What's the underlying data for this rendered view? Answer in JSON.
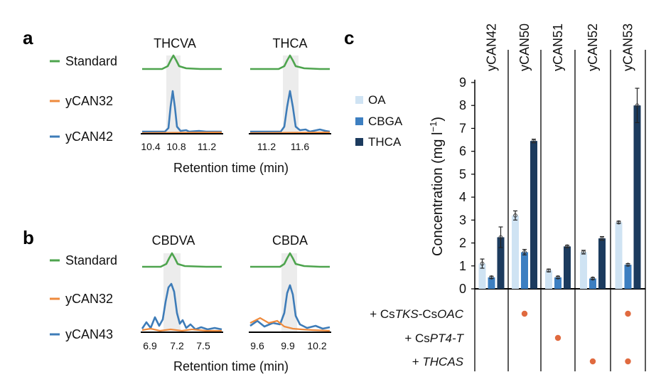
{
  "colors": {
    "standard": "#4ea44e",
    "control": "#ee8a3c",
    "strain": "#3e7cb8",
    "OA": "#cfe3f3",
    "CBGA": "#3d7fc1",
    "THCA": "#1c3b5e",
    "dot": "#e06a3f",
    "highlight": "#ececec"
  },
  "panels": {
    "a": "a",
    "b": "b",
    "c": "c"
  },
  "panel_a": {
    "legend": [
      "Standard",
      "yCAN32",
      "yCAN42"
    ],
    "xlabel": "Retention time (min)",
    "plots": [
      {
        "title": "THCVA",
        "ticks": [
          "10.4",
          "10.8",
          "11.2"
        ]
      },
      {
        "title": "THCA",
        "ticks": [
          "11.2",
          "11.6"
        ]
      }
    ]
  },
  "panel_b": {
    "legend": [
      "Standard",
      "yCAN32",
      "yCAN43"
    ],
    "xlabel": "Retention time (min)",
    "plots": [
      {
        "title": "CBDVA",
        "ticks": [
          "6.9",
          "7.2",
          "7.5"
        ]
      },
      {
        "title": "CBDA",
        "ticks": [
          "9.6",
          "9.9",
          "10.2"
        ]
      }
    ]
  },
  "chart_data": {
    "type": "bar",
    "categories": [
      "yCAN42",
      "yCAN50",
      "yCAN51",
      "yCAN52",
      "yCAN53"
    ],
    "series": [
      {
        "name": "OA",
        "values": [
          1.1,
          3.2,
          0.8,
          1.6,
          2.9
        ]
      },
      {
        "name": "CBGA",
        "values": [
          0.5,
          1.6,
          0.5,
          0.45,
          1.05
        ]
      },
      {
        "name": "THCA",
        "values": [
          2.25,
          6.45,
          1.85,
          2.2,
          8.0
        ]
      }
    ],
    "errors": [
      [
        0.2,
        0.2,
        0.06,
        0.08,
        0.05
      ],
      [
        0.05,
        0.12,
        0.05,
        0.04,
        0.05
      ],
      [
        0.45,
        0.08,
        0.05,
        0.08,
        0.75
      ]
    ],
    "ylabel_main": "Concentration (mg l",
    "ylabel_sup": "−1",
    "ylabel_end": ")",
    "yticks": [
      "0",
      "1",
      "2",
      "3",
      "4",
      "5",
      "6",
      "7",
      "8",
      "9"
    ],
    "ylim": [
      0,
      9
    ],
    "legend_placement": "top-left",
    "conditions": [
      {
        "parts": [
          "+ Cs",
          "TKS",
          "-Cs",
          "OAC"
        ],
        "present": [
          false,
          true,
          false,
          false,
          true
        ]
      },
      {
        "parts": [
          "+ Cs",
          "PT4-T"
        ],
        "present": [
          false,
          false,
          true,
          false,
          false
        ]
      },
      {
        "parts": [
          "+ ",
          "THCAS"
        ],
        "present": [
          false,
          false,
          false,
          true,
          true
        ]
      }
    ]
  }
}
